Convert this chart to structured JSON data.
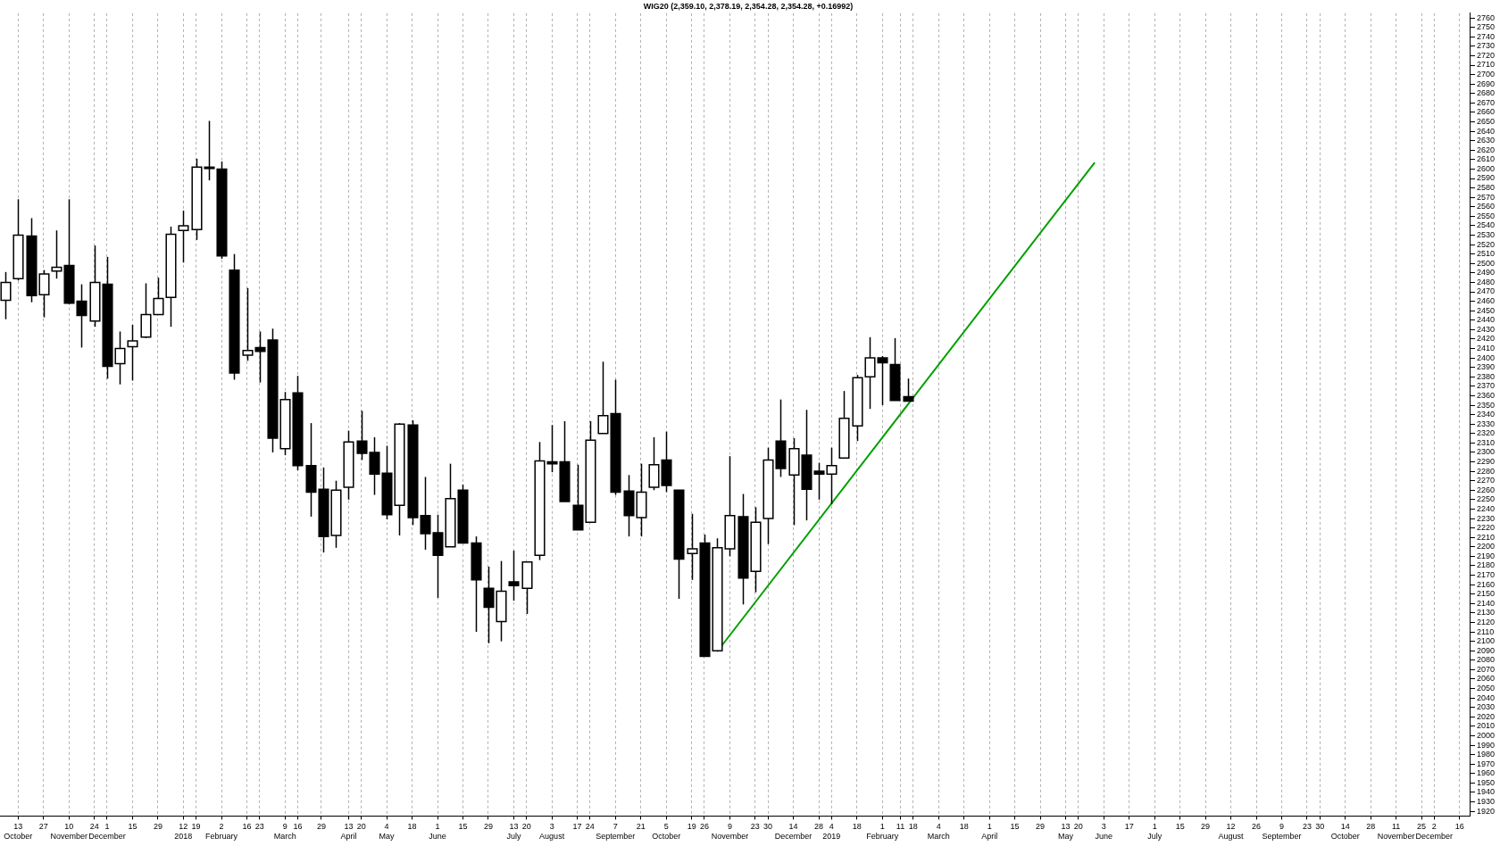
{
  "chart_data": {
    "type": "candlestick",
    "title": "WIG20 (2,359.10, 2,378.19, 2,354.28, 2,354.28, +0.16992)",
    "x": [
      "2017-10-06",
      "2017-10-13",
      "2017-10-20",
      "2017-10-27",
      "2017-11-03",
      "2017-11-10",
      "2017-11-17",
      "2017-11-24",
      "2017-12-01",
      "2017-12-08",
      "2017-12-15",
      "2017-12-22",
      "2017-12-29",
      "2018-01-05",
      "2018-01-12",
      "2018-01-19",
      "2018-01-26",
      "2018-02-02",
      "2018-02-09",
      "2018-02-16",
      "2018-02-23",
      "2018-03-02",
      "2018-03-09",
      "2018-03-16",
      "2018-03-23",
      "2018-03-30",
      "2018-04-06",
      "2018-04-13",
      "2018-04-20",
      "2018-04-27",
      "2018-05-04",
      "2018-05-11",
      "2018-05-18",
      "2018-05-25",
      "2018-06-01",
      "2018-06-08",
      "2018-06-15",
      "2018-06-22",
      "2018-06-29",
      "2018-07-06",
      "2018-07-13",
      "2018-07-20",
      "2018-07-27",
      "2018-08-03",
      "2018-08-10",
      "2018-08-17",
      "2018-08-24",
      "2018-08-31",
      "2018-09-07",
      "2018-09-14",
      "2018-09-21",
      "2018-09-28",
      "2018-10-05",
      "2018-10-12",
      "2018-10-19",
      "2018-10-26",
      "2018-11-02",
      "2018-11-09",
      "2018-11-16",
      "2018-11-23",
      "2018-11-30",
      "2018-12-07",
      "2018-12-14",
      "2018-12-21",
      "2018-12-28",
      "2019-01-04",
      "2019-01-11",
      "2019-01-18",
      "2019-01-25",
      "2019-02-01",
      "2019-02-08",
      "2019-02-15"
    ],
    "ohlc": [
      [
        2461,
        2491,
        2441,
        2480
      ],
      [
        2484,
        2568,
        2482,
        2530
      ],
      [
        2529,
        2548,
        2459,
        2466
      ],
      [
        2467,
        2493,
        2443,
        2489
      ],
      [
        2492,
        2535,
        2484,
        2496
      ],
      [
        2498,
        2568,
        2457,
        2458
      ],
      [
        2460,
        2478,
        2411,
        2445
      ],
      [
        2439,
        2519,
        2433,
        2480
      ],
      [
        2478,
        2507,
        2378,
        2391
      ],
      [
        2394,
        2428,
        2372,
        2410
      ],
      [
        2412,
        2435,
        2376,
        2418
      ],
      [
        2422,
        2479,
        2421,
        2446
      ],
      [
        2446,
        2485,
        2446,
        2463
      ],
      [
        2464,
        2539,
        2433,
        2531
      ],
      [
        2535,
        2556,
        2501,
        2540
      ],
      [
        2536,
        2611,
        2525,
        2602
      ],
      [
        2602,
        2651,
        2588,
        2601
      ],
      [
        2600,
        2608,
        2505,
        2508
      ],
      [
        2493,
        2510,
        2377,
        2384
      ],
      [
        2403,
        2474,
        2397,
        2408
      ],
      [
        2411,
        2428,
        2374,
        2407
      ],
      [
        2419,
        2431,
        2300,
        2315
      ],
      [
        2304,
        2364,
        2297,
        2356
      ],
      [
        2363,
        2381,
        2281,
        2286
      ],
      [
        2286,
        2331,
        2232,
        2258
      ],
      [
        2261,
        2284,
        2194,
        2211
      ],
      [
        2212,
        2270,
        2199,
        2260
      ],
      [
        2263,
        2323,
        2250,
        2311
      ],
      [
        2312,
        2344,
        2292,
        2299
      ],
      [
        2300,
        2316,
        2255,
        2277
      ],
      [
        2278,
        2307,
        2229,
        2234
      ],
      [
        2244,
        2331,
        2212,
        2330
      ],
      [
        2329,
        2334,
        2223,
        2231
      ],
      [
        2233,
        2274,
        2197,
        2214
      ],
      [
        2215,
        2234,
        2146,
        2191
      ],
      [
        2200,
        2288,
        2200,
        2251
      ],
      [
        2260,
        2266,
        2204,
        2204
      ],
      [
        2204,
        2211,
        2110,
        2165
      ],
      [
        2156,
        2179,
        2098,
        2136
      ],
      [
        2121,
        2185,
        2100,
        2153
      ],
      [
        2163,
        2196,
        2143,
        2159
      ],
      [
        2156,
        2184,
        2129,
        2184
      ],
      [
        2191,
        2311,
        2186,
        2291
      ],
      [
        2290,
        2329,
        2279,
        2288
      ],
      [
        2290,
        2333,
        2248,
        2248
      ],
      [
        2244,
        2287,
        2218,
        2218
      ],
      [
        2226,
        2333,
        2226,
        2313
      ],
      [
        2320,
        2396,
        2320,
        2339
      ],
      [
        2341,
        2377,
        2255,
        2258
      ],
      [
        2259,
        2276,
        2211,
        2233
      ],
      [
        2231,
        2288,
        2211,
        2258
      ],
      [
        2263,
        2316,
        2260,
        2287
      ],
      [
        2292,
        2322,
        2258,
        2265
      ],
      [
        2260,
        2260,
        2145,
        2187
      ],
      [
        2193,
        2235,
        2165,
        2198
      ],
      [
        2204,
        2213,
        2084,
        2084
      ],
      [
        2090,
        2209,
        2090,
        2199
      ],
      [
        2198,
        2296,
        2190,
        2233
      ],
      [
        2232,
        2256,
        2139,
        2167
      ],
      [
        2174,
        2242,
        2152,
        2226
      ],
      [
        2230,
        2305,
        2203,
        2292
      ],
      [
        2312,
        2356,
        2274,
        2283
      ],
      [
        2276,
        2315,
        2223,
        2304
      ],
      [
        2297,
        2345,
        2228,
        2261
      ],
      [
        2280,
        2289,
        2250,
        2277
      ],
      [
        2277,
        2305,
        2245,
        2286
      ],
      [
        2294,
        2365,
        2294,
        2336
      ],
      [
        2328,
        2382,
        2312,
        2379
      ],
      [
        2380,
        2422,
        2346,
        2400
      ],
      [
        2400,
        2402,
        2350,
        2395
      ],
      [
        2393,
        2421,
        2355,
        2355
      ],
      [
        2359.1,
        2378.19,
        2354.28,
        2354.28
      ]
    ],
    "series": [
      {
        "type": "line",
        "color": "#00a000",
        "x": [
          "2018-11-02",
          "2019-05-29"
        ],
        "values": [
          2089,
          2607
        ]
      }
    ],
    "xlim": [
      "2017-10-03",
      "2019-12-22"
    ],
    "xticks": [
      {
        "value": "2017-10-13",
        "label": "13\nOctober"
      },
      {
        "value": "2017-10-27",
        "label": "27"
      },
      {
        "value": "2017-11-10",
        "label": "10\nNovember"
      },
      {
        "value": "2017-11-24",
        "label": "24"
      },
      {
        "value": "2017-12-01",
        "label": "1\nDecember"
      },
      {
        "value": "2017-12-15",
        "label": "15"
      },
      {
        "value": "2017-12-29",
        "label": "29"
      },
      {
        "value": "2018-01-12",
        "label": "12\n2018"
      },
      {
        "value": "2018-01-19",
        "label": "19"
      },
      {
        "value": "2018-02-02",
        "label": "2\nFebruary"
      },
      {
        "value": "2018-02-16",
        "label": "16"
      },
      {
        "value": "2018-02-23",
        "label": "23"
      },
      {
        "value": "2018-03-09",
        "label": "9\nMarch"
      },
      {
        "value": "2018-03-16",
        "label": "16"
      },
      {
        "value": "2018-03-29",
        "label": "29"
      },
      {
        "value": "2018-04-13",
        "label": "13\nApril"
      },
      {
        "value": "2018-04-20",
        "label": "20"
      },
      {
        "value": "2018-05-04",
        "label": "4\nMay"
      },
      {
        "value": "2018-05-18",
        "label": "18"
      },
      {
        "value": "2018-06-01",
        "label": "1\nJune"
      },
      {
        "value": "2018-06-15",
        "label": "15"
      },
      {
        "value": "2018-06-29",
        "label": "29"
      },
      {
        "value": "2018-07-13",
        "label": "13\nJuly"
      },
      {
        "value": "2018-07-20",
        "label": "20"
      },
      {
        "value": "2018-08-03",
        "label": "3\nAugust"
      },
      {
        "value": "2018-08-17",
        "label": "17"
      },
      {
        "value": "2018-08-24",
        "label": "24"
      },
      {
        "value": "2018-09-07",
        "label": "7\nSeptember"
      },
      {
        "value": "2018-09-21",
        "label": "21"
      },
      {
        "value": "2018-10-05",
        "label": "5\nOctober"
      },
      {
        "value": "2018-10-19",
        "label": "19"
      },
      {
        "value": "2018-10-26",
        "label": "26"
      },
      {
        "value": "2018-11-09",
        "label": "9\nNovember"
      },
      {
        "value": "2018-11-23",
        "label": "23"
      },
      {
        "value": "2018-11-30",
        "label": "30"
      },
      {
        "value": "2018-12-14",
        "label": "14\nDecember"
      },
      {
        "value": "2018-12-28",
        "label": "28"
      },
      {
        "value": "2019-01-04",
        "label": "4\n2019"
      },
      {
        "value": "2019-01-18",
        "label": "18"
      },
      {
        "value": "2019-02-01",
        "label": "1\nFebruary"
      },
      {
        "value": "2019-02-11",
        "label": "11"
      },
      {
        "value": "2019-02-18",
        "label": "18"
      },
      {
        "value": "2019-03-04",
        "label": "4\nMarch"
      },
      {
        "value": "2019-03-18",
        "label": "18"
      },
      {
        "value": "2019-04-01",
        "label": "1\nApril"
      },
      {
        "value": "2019-04-15",
        "label": "15"
      },
      {
        "value": "2019-04-29",
        "label": "29"
      },
      {
        "value": "2019-05-13",
        "label": "13\nMay"
      },
      {
        "value": "2019-05-20",
        "label": "20"
      },
      {
        "value": "2019-06-03",
        "label": "3\nJune"
      },
      {
        "value": "2019-06-17",
        "label": "17"
      },
      {
        "value": "2019-07-01",
        "label": "1\nJuly"
      },
      {
        "value": "2019-07-15",
        "label": "15"
      },
      {
        "value": "2019-07-29",
        "label": "29"
      },
      {
        "value": "2019-08-12",
        "label": "12\nAugust"
      },
      {
        "value": "2019-08-26",
        "label": "26"
      },
      {
        "value": "2019-09-09",
        "label": "9\nSeptember"
      },
      {
        "value": "2019-09-23",
        "label": "23"
      },
      {
        "value": "2019-09-30",
        "label": "30"
      },
      {
        "value": "2019-10-14",
        "label": "14\nOctober"
      },
      {
        "value": "2019-10-28",
        "label": "28"
      },
      {
        "value": "2019-11-11",
        "label": "11\nNovember"
      },
      {
        "value": "2019-11-25",
        "label": "25"
      },
      {
        "value": "2019-12-02",
        "label": "2\nDecember"
      },
      {
        "value": "2019-12-16",
        "label": "16"
      }
    ],
    "ylim": [
      1915,
      2765
    ],
    "yticks": [
      1920,
      1930,
      1940,
      1950,
      1960,
      1970,
      1980,
      1990,
      2000,
      2010,
      2020,
      2030,
      2040,
      2050,
      2060,
      2070,
      2080,
      2090,
      2100,
      2110,
      2120,
      2130,
      2140,
      2150,
      2160,
      2170,
      2180,
      2190,
      2200,
      2210,
      2220,
      2230,
      2240,
      2250,
      2260,
      2270,
      2280,
      2290,
      2300,
      2310,
      2320,
      2330,
      2340,
      2350,
      2360,
      2370,
      2380,
      2390,
      2400,
      2410,
      2420,
      2430,
      2440,
      2450,
      2460,
      2470,
      2480,
      2490,
      2500,
      2510,
      2520,
      2530,
      2540,
      2550,
      2560,
      2570,
      2580,
      2590,
      2600,
      2610,
      2620,
      2630,
      2640,
      2650,
      2660,
      2670,
      2680,
      2690,
      2700,
      2710,
      2720,
      2730,
      2740,
      2750,
      2760
    ],
    "grid": "x",
    "legend": false
  }
}
